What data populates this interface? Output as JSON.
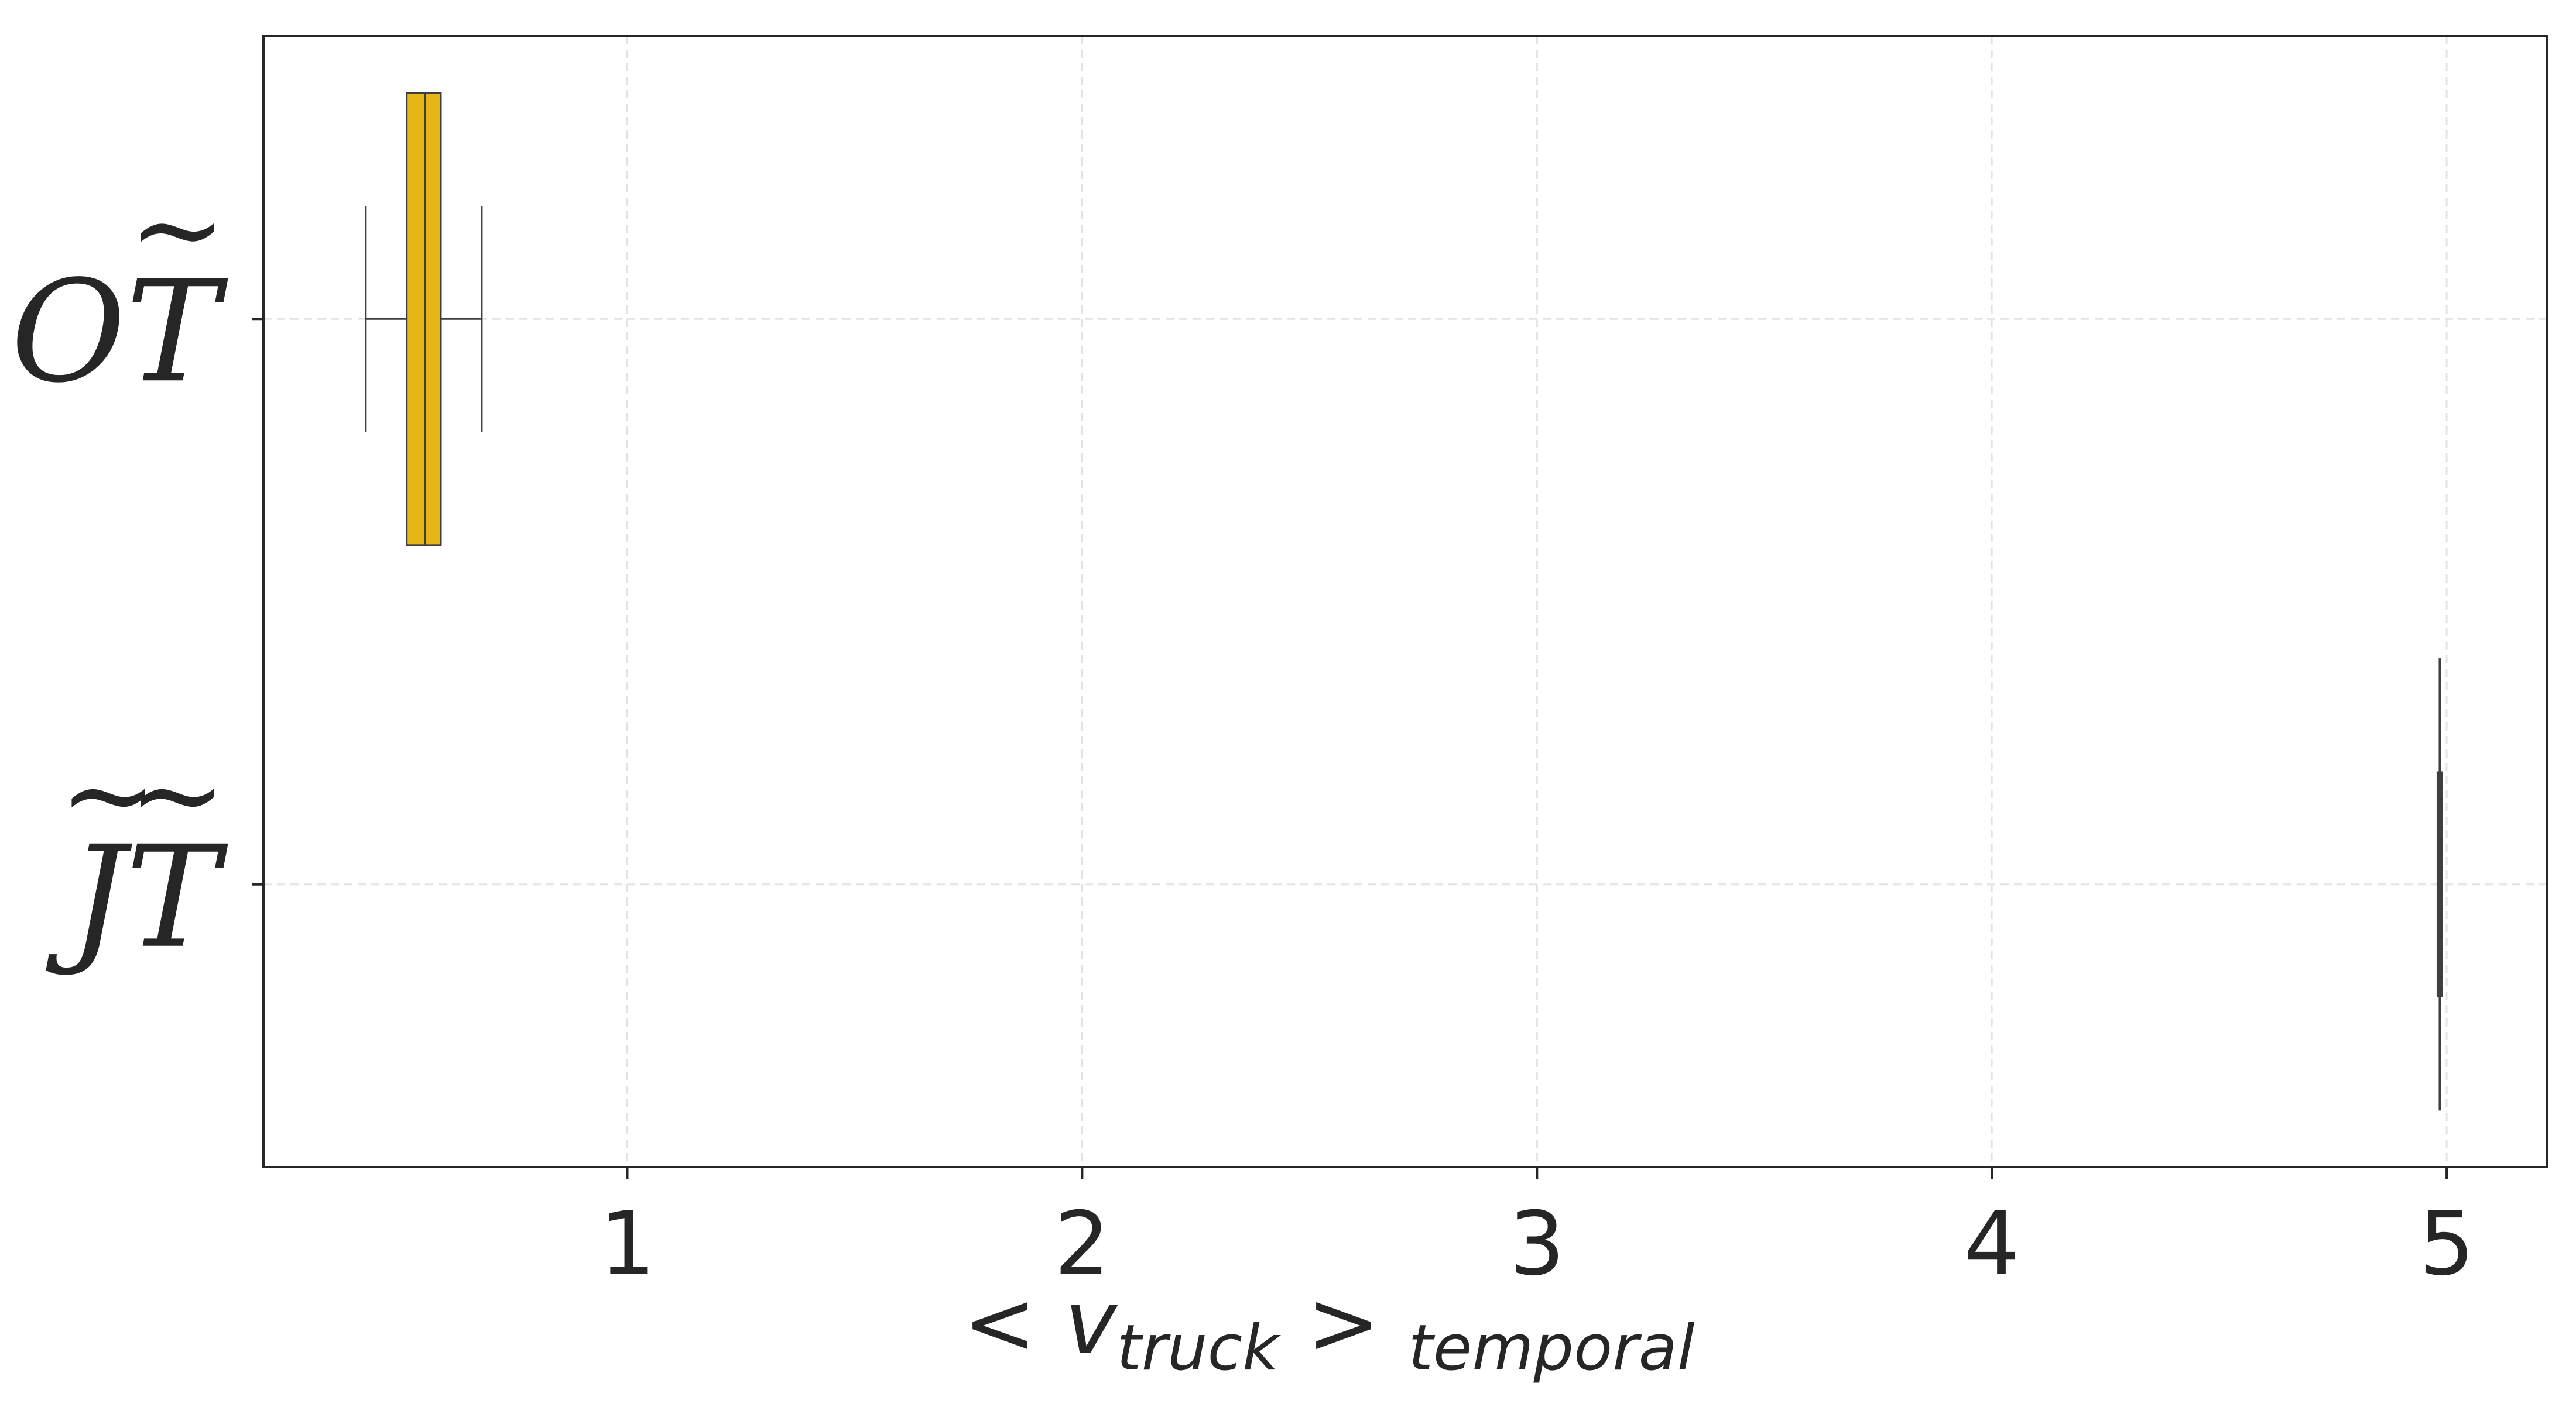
{
  "chart_data": {
    "type": "boxplot",
    "orientation": "horizontal",
    "xlabel": {
      "lt": "<",
      "v": "v",
      "sub_truck": "truck",
      "gt": ">",
      "sub_temporal": "temporal"
    },
    "ylabel": "",
    "xlim": [
      0.2,
      5.22
    ],
    "xticks": [
      1,
      2,
      3,
      4,
      5
    ],
    "xtick_labels": [
      "1",
      "2",
      "3",
      "4",
      "5"
    ],
    "grid": true,
    "categories": [
      {
        "label_base": "O",
        "label_tilde_base": "T",
        "has_leading_tilde": false,
        "whisker_low": 0.425,
        "q1": 0.515,
        "median": 0.555,
        "q3": 0.59,
        "whisker_high": 0.68,
        "color": "#e6b516"
      },
      {
        "label_base": "J",
        "label_tilde_base": "T",
        "has_leading_tilde": true,
        "whisker_low": 4.985,
        "q1": 4.985,
        "median": 4.985,
        "q3": 4.985,
        "whisker_high": 4.985,
        "color": "#e6b516"
      }
    ],
    "colors": {
      "box_fill": "#e6b516",
      "box_edge": "#3f3f3f",
      "grid": "#e3e3e3",
      "frame": "#262626",
      "text": "#262626"
    }
  }
}
